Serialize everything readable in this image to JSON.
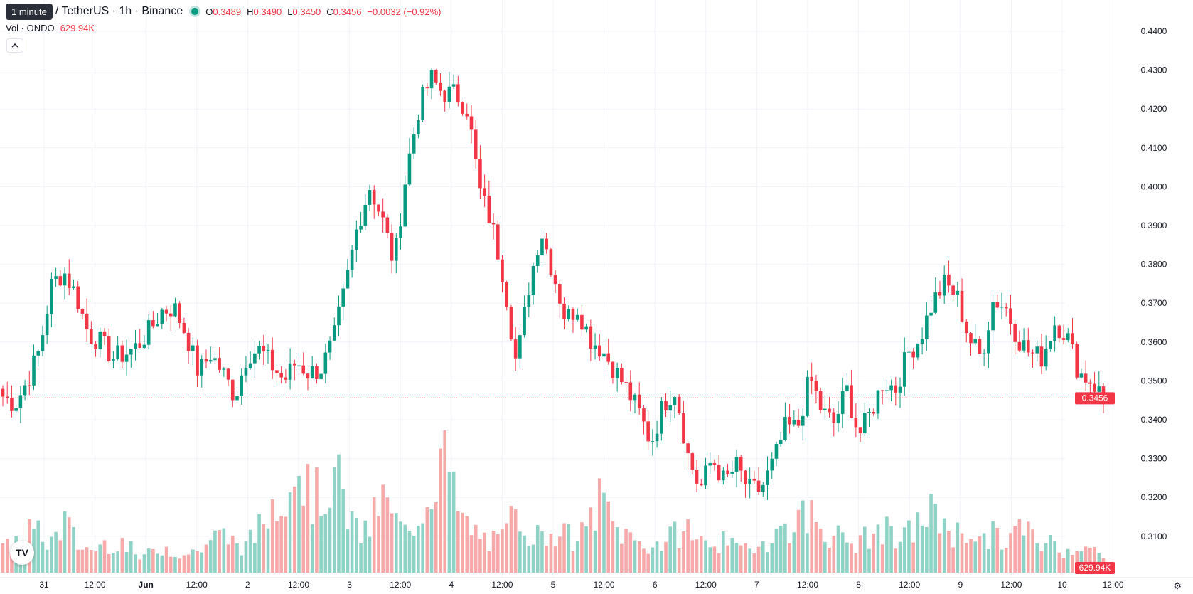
{
  "header": {
    "interval_tooltip": "1 minute",
    "symbol_title": "/ TetherUS · 1h · Binance",
    "ohlc": {
      "o_label": "O",
      "o_value": "0.3489",
      "h_label": "H",
      "h_value": "0.3490",
      "l_label": "L",
      "l_value": "0.3450",
      "c_label": "C",
      "c_value": "0.3456",
      "change": "−0.0032 (−0.92%)"
    },
    "volume_label": "Vol · ONDO",
    "volume_value": "629.94K",
    "collapse_icon": "chevron-up-icon",
    "logo_text": "TV",
    "settings_icon": "gear-icon"
  },
  "colors": {
    "up": "#089981",
    "down": "#f23645",
    "up_volume": "#8fd2c6",
    "down_volume": "#f7a9a9",
    "grid": "#f0f3fa",
    "text": "#131722"
  },
  "chart_data": {
    "type": "candlestick",
    "interval": "1h",
    "y_axis": {
      "range": [
        0.305,
        0.445
      ],
      "ticks": [
        "0.4400",
        "0.4300",
        "0.4200",
        "0.4100",
        "0.4000",
        "0.3900",
        "0.3800",
        "0.3700",
        "0.3600",
        "0.3500",
        "0.3400",
        "0.3300",
        "0.3200",
        "0.3100"
      ]
    },
    "x_axis": {
      "ticks": [
        "31",
        "12:00",
        "Jun",
        "12:00",
        "2",
        "12:00",
        "3",
        "12:00",
        "4",
        "12:00",
        "5",
        "12:00",
        "6",
        "12:00",
        "7",
        "12:00",
        "8",
        "12:00",
        "9",
        "12:00",
        "10",
        "12:00"
      ]
    },
    "last_price": "0.3456",
    "last_price_value": 0.3456,
    "last_volume": "629.94K",
    "price_waypoints": [
      [
        0.346,
        0.344,
        0.35,
        0.358,
        0.375,
        0.378,
        0.372,
        0.362,
        0.36,
        0.356,
        0.357,
        0.359,
        0.363,
        0.368,
        0.369,
        0.362,
        0.352,
        0.357,
        0.352,
        0.346,
        0.357,
        0.358,
        0.354,
        0.35,
        0.355,
        0.352,
        0.353,
        0.36,
        0.374,
        0.39,
        0.4,
        0.392,
        0.38,
        0.404,
        0.42,
        0.428,
        0.424,
        0.424,
        0.42,
        0.399,
        0.39,
        0.376,
        0.354,
        0.374,
        0.389,
        0.378,
        0.366,
        0.369,
        0.361,
        0.358,
        0.353,
        0.348,
        0.342,
        0.334,
        0.344,
        0.348,
        0.331,
        0.322,
        0.33,
        0.324,
        0.328,
        0.322,
        0.322,
        0.329,
        0.338,
        0.338,
        0.351,
        0.342,
        0.339,
        0.348,
        0.336,
        0.342,
        0.35,
        0.348,
        0.357,
        0.361,
        0.37,
        0.375,
        0.372,
        0.361,
        0.356,
        0.371,
        0.369,
        0.361,
        0.357,
        0.356,
        0.365,
        0.362,
        0.352,
        0.35,
        0.3456
      ]
    ],
    "volume_levels": [
      0.15,
      0.2,
      0.3,
      0.25,
      0.2,
      0.35,
      0.2,
      0.15,
      0.18,
      0.22,
      0.2,
      0.1,
      0.12,
      0.18,
      0.15,
      0.12,
      0.15,
      0.22,
      0.25,
      0.2,
      0.18,
      0.3,
      0.45,
      0.6,
      0.75,
      0.55,
      0.48,
      0.7,
      0.45,
      0.25,
      0.3,
      0.5,
      0.35,
      0.25,
      0.4,
      0.55,
      0.9,
      0.45,
      0.3,
      0.25,
      0.2,
      0.22,
      0.45,
      0.3,
      0.22,
      0.3,
      0.25,
      0.2,
      0.35,
      0.5,
      0.3,
      0.25,
      0.2,
      0.18,
      0.2,
      0.25,
      0.3,
      0.2,
      0.22,
      0.2,
      0.15,
      0.18,
      0.2,
      0.25,
      0.3,
      0.35,
      0.4,
      0.3,
      0.25,
      0.2,
      0.2,
      0.25,
      0.3,
      0.2,
      0.25,
      0.35,
      0.4,
      0.35,
      0.25,
      0.3,
      0.2,
      0.25,
      0.2,
      0.3,
      0.25,
      0.2,
      0.2,
      0.15,
      0.2,
      0.15,
      0.1
    ]
  }
}
